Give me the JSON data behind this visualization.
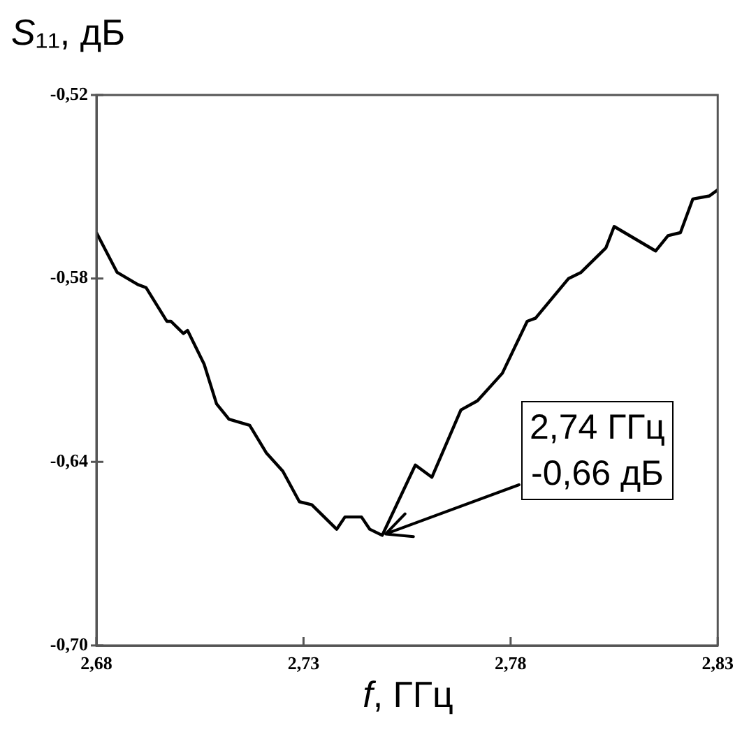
{
  "chart_data": {
    "type": "line",
    "title": "S₁₁, дБ",
    "xlabel": "f, ГГц",
    "x": [
      2.68,
      2.685,
      2.69,
      2.692,
      2.697,
      2.698,
      2.701,
      2.702,
      2.706,
      2.709,
      2.712,
      2.717,
      2.721,
      2.725,
      2.729,
      2.732,
      2.738,
      2.74,
      2.744,
      2.746,
      2.749,
      2.757,
      2.761,
      2.768,
      2.772,
      2.778,
      2.784,
      2.786,
      2.794,
      2.797,
      2.803,
      2.805,
      2.81,
      2.815,
      2.818,
      2.821,
      2.824,
      2.828,
      2.83
    ],
    "series": [
      {
        "color": "#000000",
        "values": [
          -0.565,
          -0.578,
          -0.582,
          -0.583,
          -0.594,
          -0.594,
          -0.598,
          -0.597,
          -0.608,
          -0.621,
          -0.626,
          -0.628,
          -0.637,
          -0.643,
          -0.653,
          -0.654,
          -0.662,
          -0.658,
          -0.658,
          -0.662,
          -0.664,
          -0.641,
          -0.645,
          -0.623,
          -0.62,
          -0.611,
          -0.594,
          -0.593,
          -0.58,
          -0.578,
          -0.57,
          -0.563,
          -0.567,
          -0.571,
          -0.566,
          -0.565,
          -0.554,
          -0.553,
          -0.551
        ]
      }
    ],
    "xlim": [
      2.68,
      2.83
    ],
    "xticks": [
      {
        "value": 2.68,
        "label": "2,68"
      },
      {
        "value": 2.73,
        "label": "2,73"
      },
      {
        "value": 2.78,
        "label": "2,78"
      },
      {
        "value": 2.83,
        "label": "2,83"
      }
    ],
    "ylim": [
      -0.7,
      -0.52
    ],
    "yticks": [
      {
        "value": -0.7,
        "label": "-0,70"
      },
      {
        "value": -0.64,
        "label": "-0,64"
      },
      {
        "value": -0.58,
        "label": "-0,58"
      },
      {
        "value": -0.52,
        "label": "-0,52"
      }
    ],
    "annotations": [
      {
        "text": "2,74 ГГц\n-0,66 дБ",
        "x": 2.749,
        "y": -0.664
      }
    ],
    "marker": "none",
    "line_style": "solid",
    "legend": false
  }
}
